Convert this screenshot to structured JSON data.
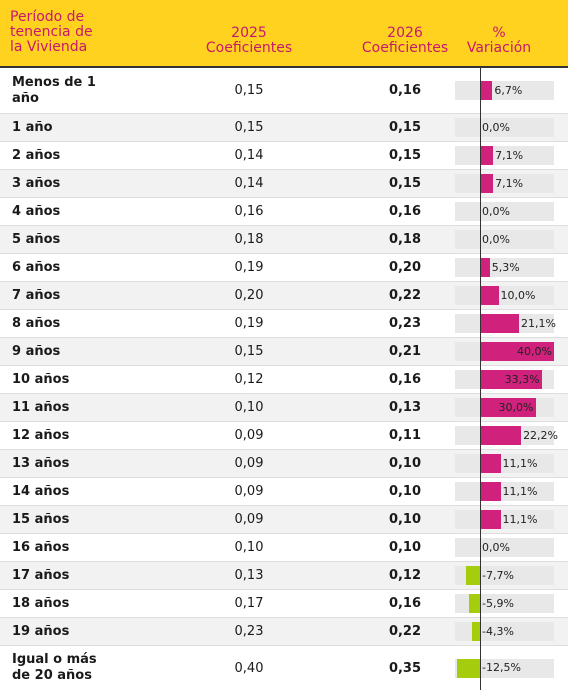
{
  "header": {
    "period": "Período de tenencia de la Vivienda",
    "col_2025_year": "2025",
    "col_2025_sub": "Coeficientes",
    "col_2026_year": "2026",
    "col_2026_sub": "Coeficientes",
    "col_var_symbol": "%",
    "col_var_sub": "Variación"
  },
  "colors": {
    "header_bg": "#ffd21f",
    "header_text": "#c8176f",
    "positive": "#d0217c",
    "negative": "#a6cd0d"
  },
  "chart_data": {
    "type": "table",
    "columns": [
      "Período de tenencia de la Vivienda",
      "2025 Coeficientes",
      "2026 Coeficientes",
      "% Variación"
    ],
    "rows": [
      {
        "period": "Menos de 1 año",
        "c2025": "0,15",
        "c2026": "0,16",
        "var_label": "6,7%",
        "var": 6.7
      },
      {
        "period": "1 año",
        "c2025": "0,15",
        "c2026": "0,15",
        "var_label": "0,0%",
        "var": 0
      },
      {
        "period": "2 años",
        "c2025": "0,14",
        "c2026": "0,15",
        "var_label": "7,1%",
        "var": 7.1
      },
      {
        "period": "3 años",
        "c2025": "0,14",
        "c2026": "0,15",
        "var_label": "7,1%",
        "var": 7.1
      },
      {
        "period": "4 años",
        "c2025": "0,16",
        "c2026": "0,16",
        "var_label": "0,0%",
        "var": 0
      },
      {
        "period": "5 años",
        "c2025": "0,18",
        "c2026": "0,18",
        "var_label": "0,0%",
        "var": 0
      },
      {
        "period": "6 años",
        "c2025": "0,19",
        "c2026": "0,20",
        "var_label": "5,3%",
        "var": 5.3
      },
      {
        "period": "7 años",
        "c2025": "0,20",
        "c2026": "0,22",
        "var_label": "10,0%",
        "var": 10.0
      },
      {
        "period": "8 años",
        "c2025": "0,19",
        "c2026": "0,23",
        "var_label": "21,1%",
        "var": 21.1
      },
      {
        "period": "9 años",
        "c2025": "0,15",
        "c2026": "0,21",
        "var_label": "40,0%",
        "var": 40.0
      },
      {
        "period": "10 años",
        "c2025": "0,12",
        "c2026": "0,16",
        "var_label": "33,3%",
        "var": 33.3
      },
      {
        "period": "11 años",
        "c2025": "0,10",
        "c2026": "0,13",
        "var_label": "30,0%",
        "var": 30.0
      },
      {
        "period": "12 años",
        "c2025": "0,09",
        "c2026": "0,11",
        "var_label": "22,2%",
        "var": 22.2
      },
      {
        "period": "13 años",
        "c2025": "0,09",
        "c2026": "0,10",
        "var_label": "11,1%",
        "var": 11.1
      },
      {
        "period": "14 años",
        "c2025": "0,09",
        "c2026": "0,10",
        "var_label": "11,1%",
        "var": 11.1
      },
      {
        "period": "15 años",
        "c2025": "0,09",
        "c2026": "0,10",
        "var_label": "11,1%",
        "var": 11.1
      },
      {
        "period": "16 años",
        "c2025": "0,10",
        "c2026": "0,10",
        "var_label": "0,0%",
        "var": 0
      },
      {
        "period": "17 años",
        "c2025": "0,13",
        "c2026": "0,12",
        "var_label": "-7,7%",
        "var": -7.7
      },
      {
        "period": "18 años",
        "c2025": "0,17",
        "c2026": "0,16",
        "var_label": "-5,9%",
        "var": -5.9
      },
      {
        "period": "19 años",
        "c2025": "0,23",
        "c2026": "0,22",
        "var_label": "-4,3%",
        "var": -4.3
      },
      {
        "period": "Igual o más de 20 años",
        "c2025": "0,40",
        "c2026": "0,35",
        "var_label": "-12,5%",
        "var": -12.5
      }
    ],
    "var_range": [
      -15,
      40
    ]
  }
}
